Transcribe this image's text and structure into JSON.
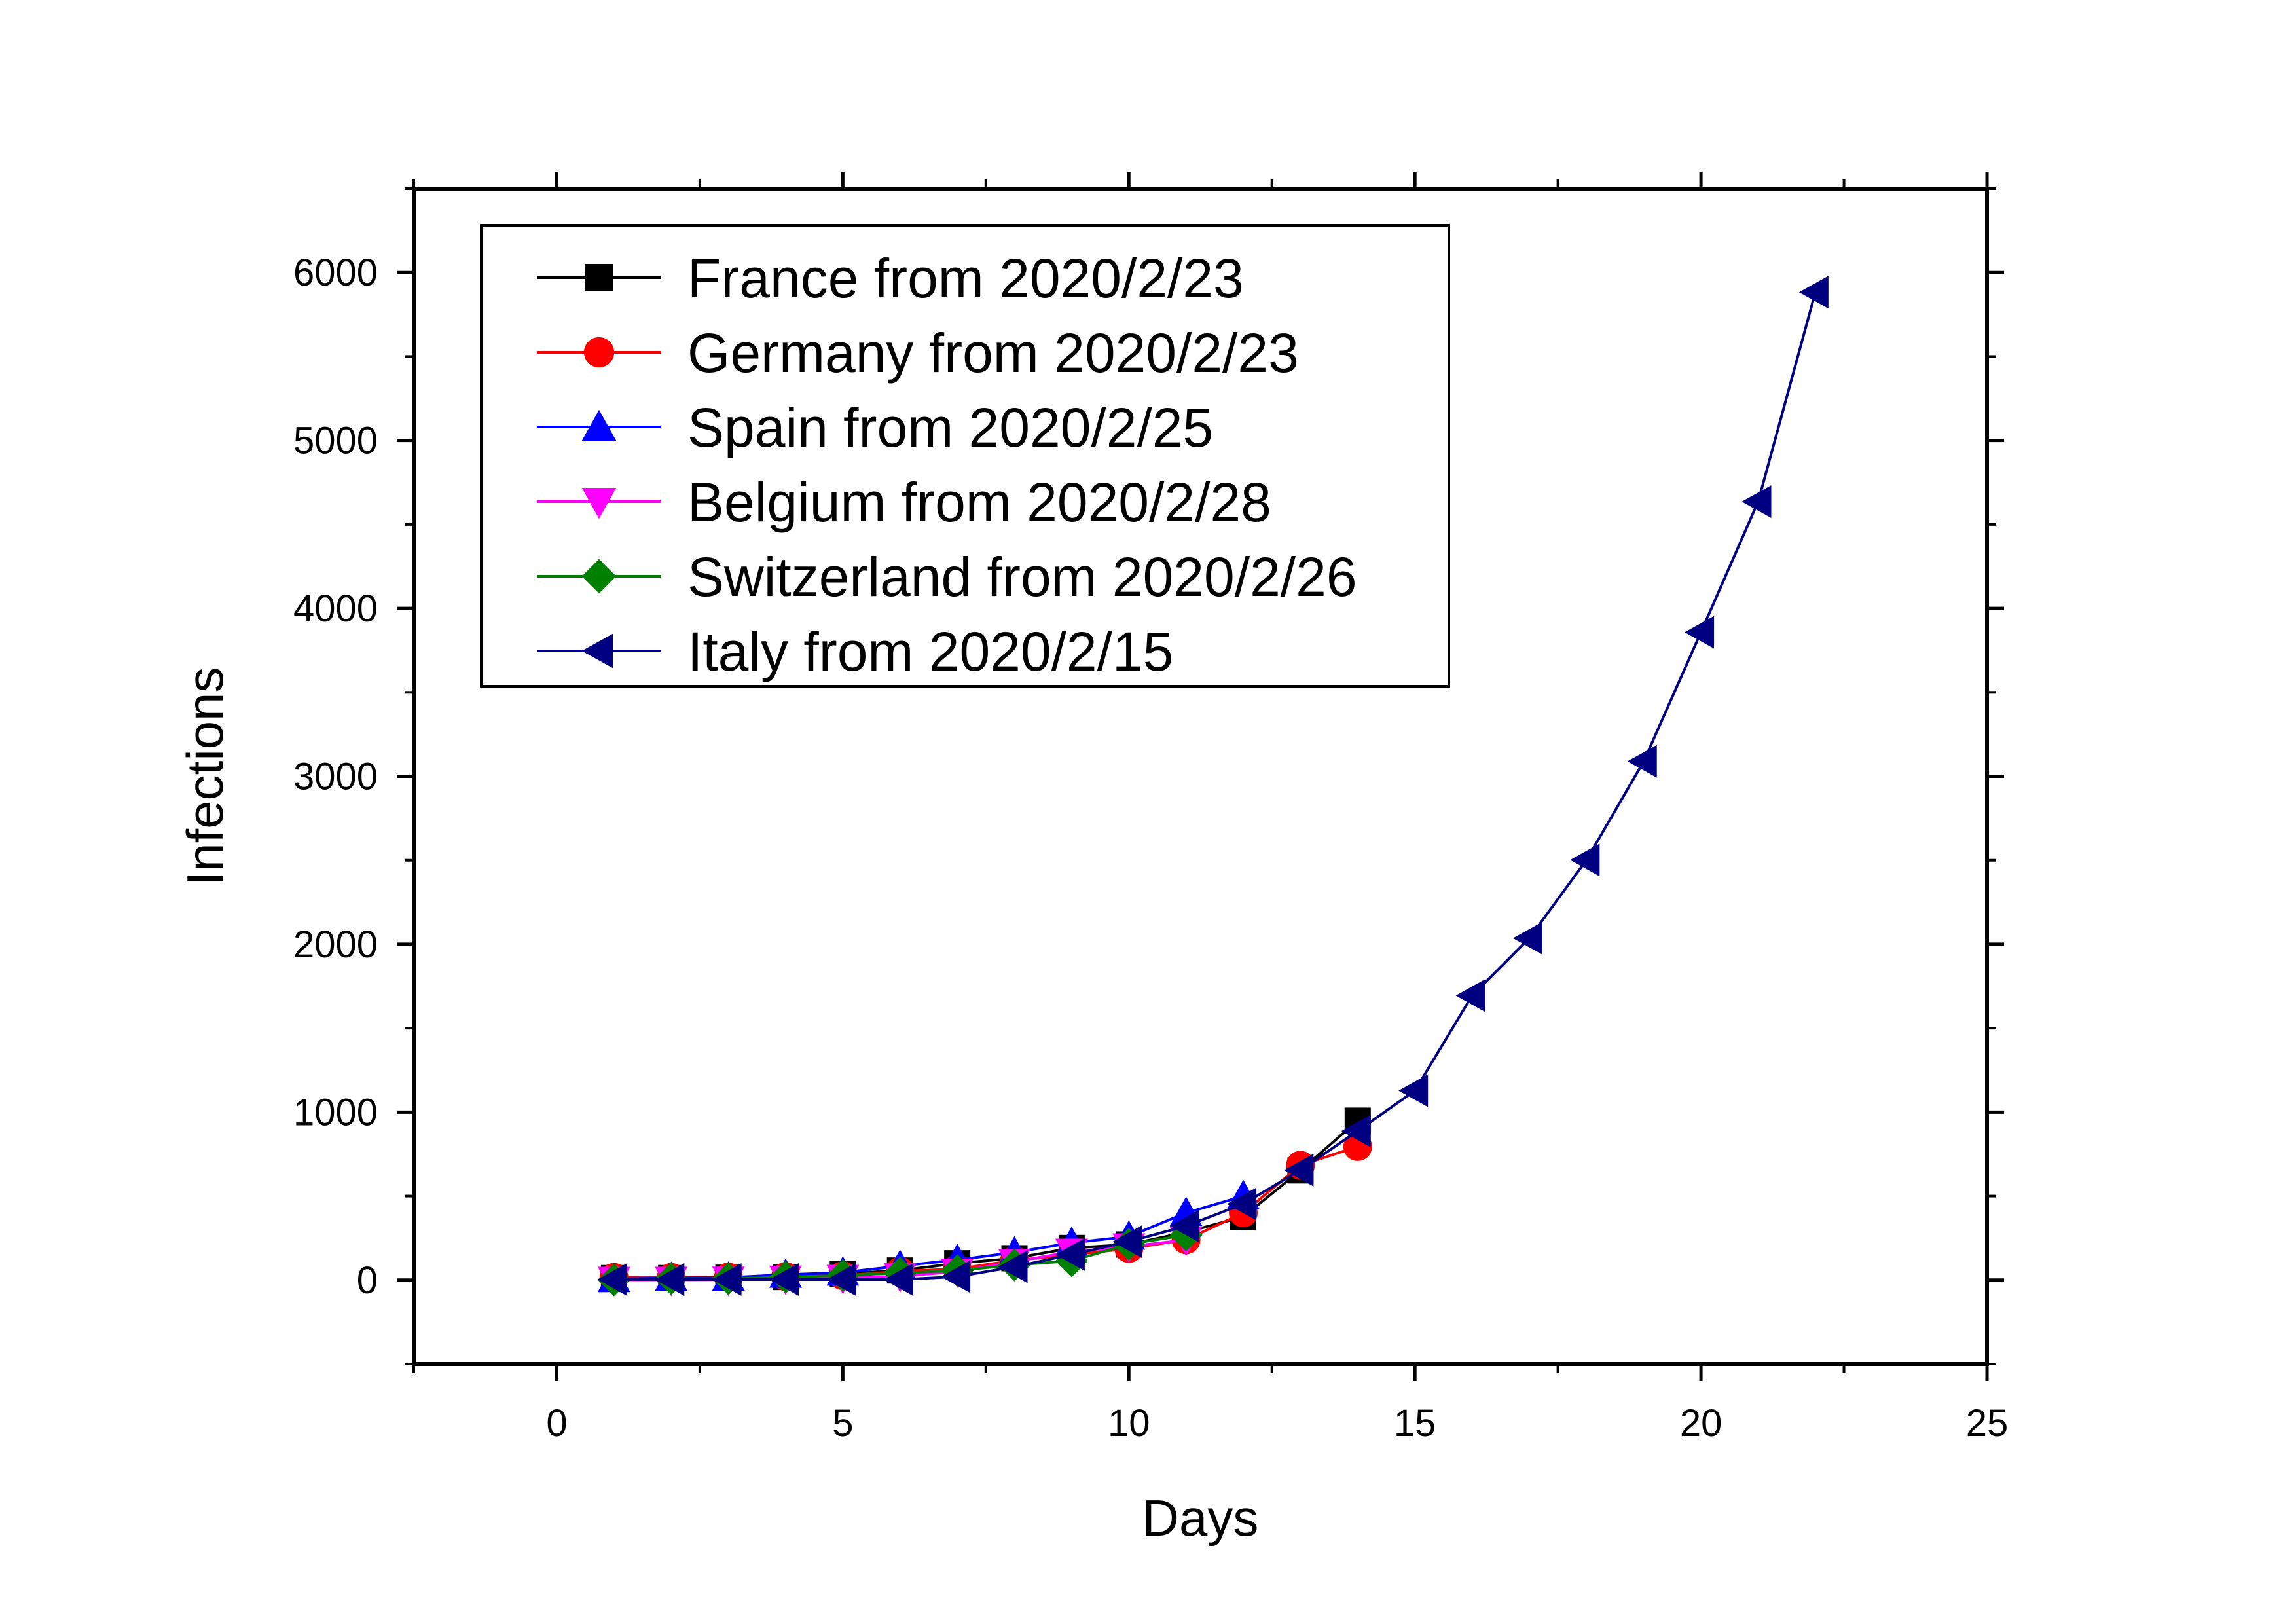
{
  "chart_data": {
    "type": "line",
    "title": "",
    "xlabel": "Days",
    "ylabel": "Infections",
    "xlim": [
      -2.5,
      25
    ],
    "ylim": [
      -500,
      6500
    ],
    "xticks": [
      0,
      5,
      10,
      15,
      20,
      25
    ],
    "yticks": [
      0,
      1000,
      2000,
      3000,
      4000,
      5000,
      6000
    ],
    "xtick_labels": [
      "0",
      "5",
      "10",
      "15",
      "20",
      "25"
    ],
    "ytick_labels": [
      "0",
      "1000",
      "2000",
      "3000",
      "4000",
      "5000",
      "6000"
    ],
    "grid": false,
    "legend_position": "top-left",
    "series": [
      {
        "name": "France from 2020/2/23",
        "color": "#000000",
        "marker": "square",
        "x": [
          1,
          2,
          3,
          4,
          5,
          6,
          7,
          8,
          9,
          10,
          11,
          12,
          13,
          14
        ],
        "y": [
          12,
          12,
          14,
          18,
          38,
          57,
          100,
          130,
          191,
          212,
          285,
          377,
          653,
          949
        ]
      },
      {
        "name": "Germany from 2020/2/23",
        "color": "#ff0000",
        "marker": "circle",
        "x": [
          1,
          2,
          3,
          4,
          5,
          6,
          7,
          8,
          9,
          10,
          11,
          12,
          13,
          14
        ],
        "y": [
          16,
          16,
          18,
          21,
          26,
          53,
          66,
          117,
          150,
          188,
          240,
          400,
          684,
          795
        ]
      },
      {
        "name": "Spain from 2020/2/25",
        "color": "#0000ff",
        "marker": "triangle-up",
        "x": [
          1,
          2,
          3,
          4,
          5,
          6,
          7,
          8,
          9,
          10,
          11,
          12
        ],
        "y": [
          6,
          13,
          15,
          32,
          45,
          84,
          120,
          165,
          222,
          259,
          400,
          500
        ]
      },
      {
        "name": "Belgium from 2020/2/28",
        "color": "#ff00ff",
        "marker": "triangle-down",
        "x": [
          1,
          2,
          3,
          4,
          5,
          6,
          7,
          8,
          9,
          10,
          11
        ],
        "y": [
          1,
          1,
          2,
          8,
          13,
          23,
          50,
          109,
          169,
          200,
          239
        ]
      },
      {
        "name": "Switzerland from 2020/2/26",
        "color": "#008000",
        "marker": "diamond",
        "x": [
          1,
          2,
          3,
          4,
          5,
          6,
          7,
          8,
          9,
          10,
          11
        ],
        "y": [
          1,
          8,
          8,
          18,
          27,
          42,
          56,
          90,
          114,
          214,
          268
        ]
      },
      {
        "name": "Italy from 2020/2/15",
        "color": "#000080",
        "marker": "triangle-left",
        "x": [
          1,
          2,
          3,
          4,
          5,
          6,
          7,
          8,
          9,
          10,
          11,
          12,
          13,
          14,
          15,
          16,
          17,
          18,
          19,
          20,
          21,
          22
        ],
        "y": [
          3,
          3,
          3,
          3,
          3,
          3,
          20,
          79,
          152,
          229,
          322,
          453,
          655,
          888,
          1128,
          1694,
          2036,
          2502,
          3089,
          3858,
          4636,
          5883
        ]
      }
    ]
  }
}
